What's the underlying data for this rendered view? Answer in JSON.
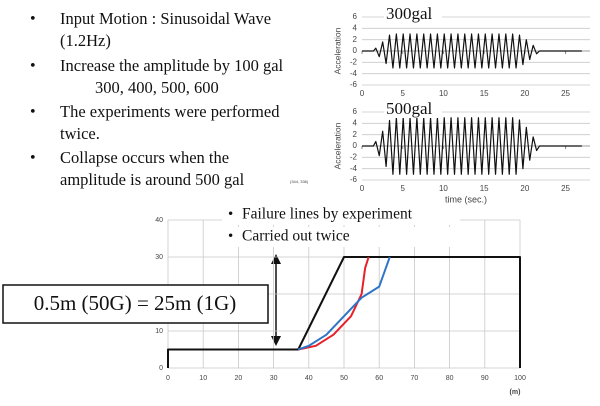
{
  "bullets": [
    {
      "lines": [
        "Input Motion : Sinusoidal Wave",
        "(1.2Hz)"
      ]
    },
    {
      "lines": [
        "Increase the amplitude by 100 gal",
        "300, 400, 500, 600"
      ]
    },
    {
      "lines": [
        "The experiments were performed",
        "twice."
      ]
    },
    {
      "lines": [
        "Collapse occurs when the",
        "amplitude is around 500 gal"
      ]
    }
  ],
  "note": "(344, 336)",
  "chart_data": [
    {
      "type": "line",
      "title": "300gal",
      "y_label": "Acceleration",
      "color": "#111111",
      "grid": true,
      "xlim": [
        0,
        28
      ],
      "xticks": [
        0,
        5,
        10,
        15,
        20,
        25
      ],
      "ylim": [
        -6,
        6
      ],
      "yticks": [
        -6,
        -4,
        -2,
        0,
        2,
        4,
        6
      ],
      "x": [
        0,
        1.4,
        1.7,
        2.12,
        2.54,
        2.96,
        3.38,
        3.8,
        4.22,
        4.64,
        5.06,
        5.48,
        5.9,
        6.32,
        6.74,
        7.16,
        7.58,
        8.0,
        8.42,
        8.84,
        9.26,
        9.68,
        10.1,
        10.52,
        10.94,
        11.36,
        11.78,
        12.2,
        12.62,
        13.04,
        13.46,
        13.88,
        14.3,
        14.72,
        15.14,
        15.56,
        15.98,
        16.4,
        16.82,
        17.24,
        17.66,
        18.08,
        18.5,
        18.92,
        19.34,
        19.76,
        20.18,
        20.6,
        21.02,
        21.44,
        21.8,
        27
      ],
      "values": [
        0,
        0,
        0.5,
        -1,
        1.6,
        -2.2,
        2.8,
        -3,
        3,
        -3,
        3,
        -3,
        3,
        -3,
        3,
        -3,
        3,
        -3,
        3,
        -3,
        3,
        -3,
        3,
        -3,
        3,
        -3,
        3,
        -3,
        3,
        -3,
        3,
        -3,
        3,
        -3,
        3,
        -3,
        3,
        -3,
        3,
        -3,
        3,
        -3,
        3,
        -3,
        2.8,
        -2.4,
        2,
        -1.5,
        1,
        -0.5,
        0,
        0
      ]
    },
    {
      "type": "line",
      "title": "500gal",
      "y_label": "Acceleration",
      "x_label": "time (sec.)",
      "color": "#111111",
      "grid": true,
      "xlim": [
        0,
        28
      ],
      "xticks": [
        0,
        5,
        10,
        15,
        20,
        25
      ],
      "ylim": [
        -6,
        6
      ],
      "yticks": [
        -6,
        -4,
        -2,
        0,
        2,
        4,
        6
      ],
      "x": [
        0,
        1.4,
        1.7,
        2.12,
        2.54,
        2.96,
        3.38,
        3.8,
        4.22,
        4.64,
        5.06,
        5.48,
        5.9,
        6.32,
        6.74,
        7.16,
        7.58,
        8.0,
        8.42,
        8.84,
        9.26,
        9.68,
        10.1,
        10.52,
        10.94,
        11.36,
        11.78,
        12.2,
        12.62,
        13.04,
        13.46,
        13.88,
        14.3,
        14.72,
        15.14,
        15.56,
        15.98,
        16.4,
        16.82,
        17.24,
        17.66,
        18.08,
        18.5,
        18.92,
        19.34,
        19.76,
        20.18,
        20.6,
        21.02,
        21.44,
        21.8,
        27
      ],
      "values": [
        0,
        0,
        0.8,
        -1.7,
        2.6,
        -3.6,
        4.5,
        -5,
        5,
        -5,
        5,
        -5,
        5,
        -5,
        5,
        -5,
        5,
        -5,
        5,
        -5,
        5,
        -5,
        5,
        -5,
        5,
        -5,
        5,
        -5,
        5,
        -5,
        5,
        -5,
        5,
        -5,
        5,
        -5,
        5,
        -5,
        5,
        -5,
        5,
        -5,
        5,
        -5,
        4.6,
        -4,
        3.3,
        -2.5,
        1.6,
        -0.8,
        0,
        0
      ]
    },
    {
      "type": "line",
      "x_label": "(m)",
      "grid": true,
      "annotations": [
        "Failure lines by experiment",
        "Carried out twice"
      ],
      "scale_note": "0.5m (50G) = 25m (1G)",
      "xlim": [
        0,
        100
      ],
      "xticks": [
        0,
        10,
        20,
        30,
        40,
        50,
        60,
        70,
        80,
        90,
        100
      ],
      "ylim": [
        0,
        40
      ],
      "yticks": [
        0,
        10,
        20,
        30,
        40
      ],
      "series": [
        {
          "color": "#111111",
          "x": [
            0,
            0,
            37,
            50,
            100,
            100
          ],
          "values": [
            0,
            5,
            5,
            30,
            30,
            0
          ]
        },
        {
          "color": "#e8202a",
          "x": [
            37,
            42,
            47,
            52,
            55,
            56,
            57
          ],
          "values": [
            5,
            6,
            9,
            14,
            20,
            27,
            30
          ]
        },
        {
          "color": "#2e75c8",
          "x": [
            37,
            40,
            45,
            50,
            55,
            60,
            63
          ],
          "values": [
            5,
            6,
            9,
            14,
            19,
            22,
            30
          ]
        }
      ]
    }
  ]
}
